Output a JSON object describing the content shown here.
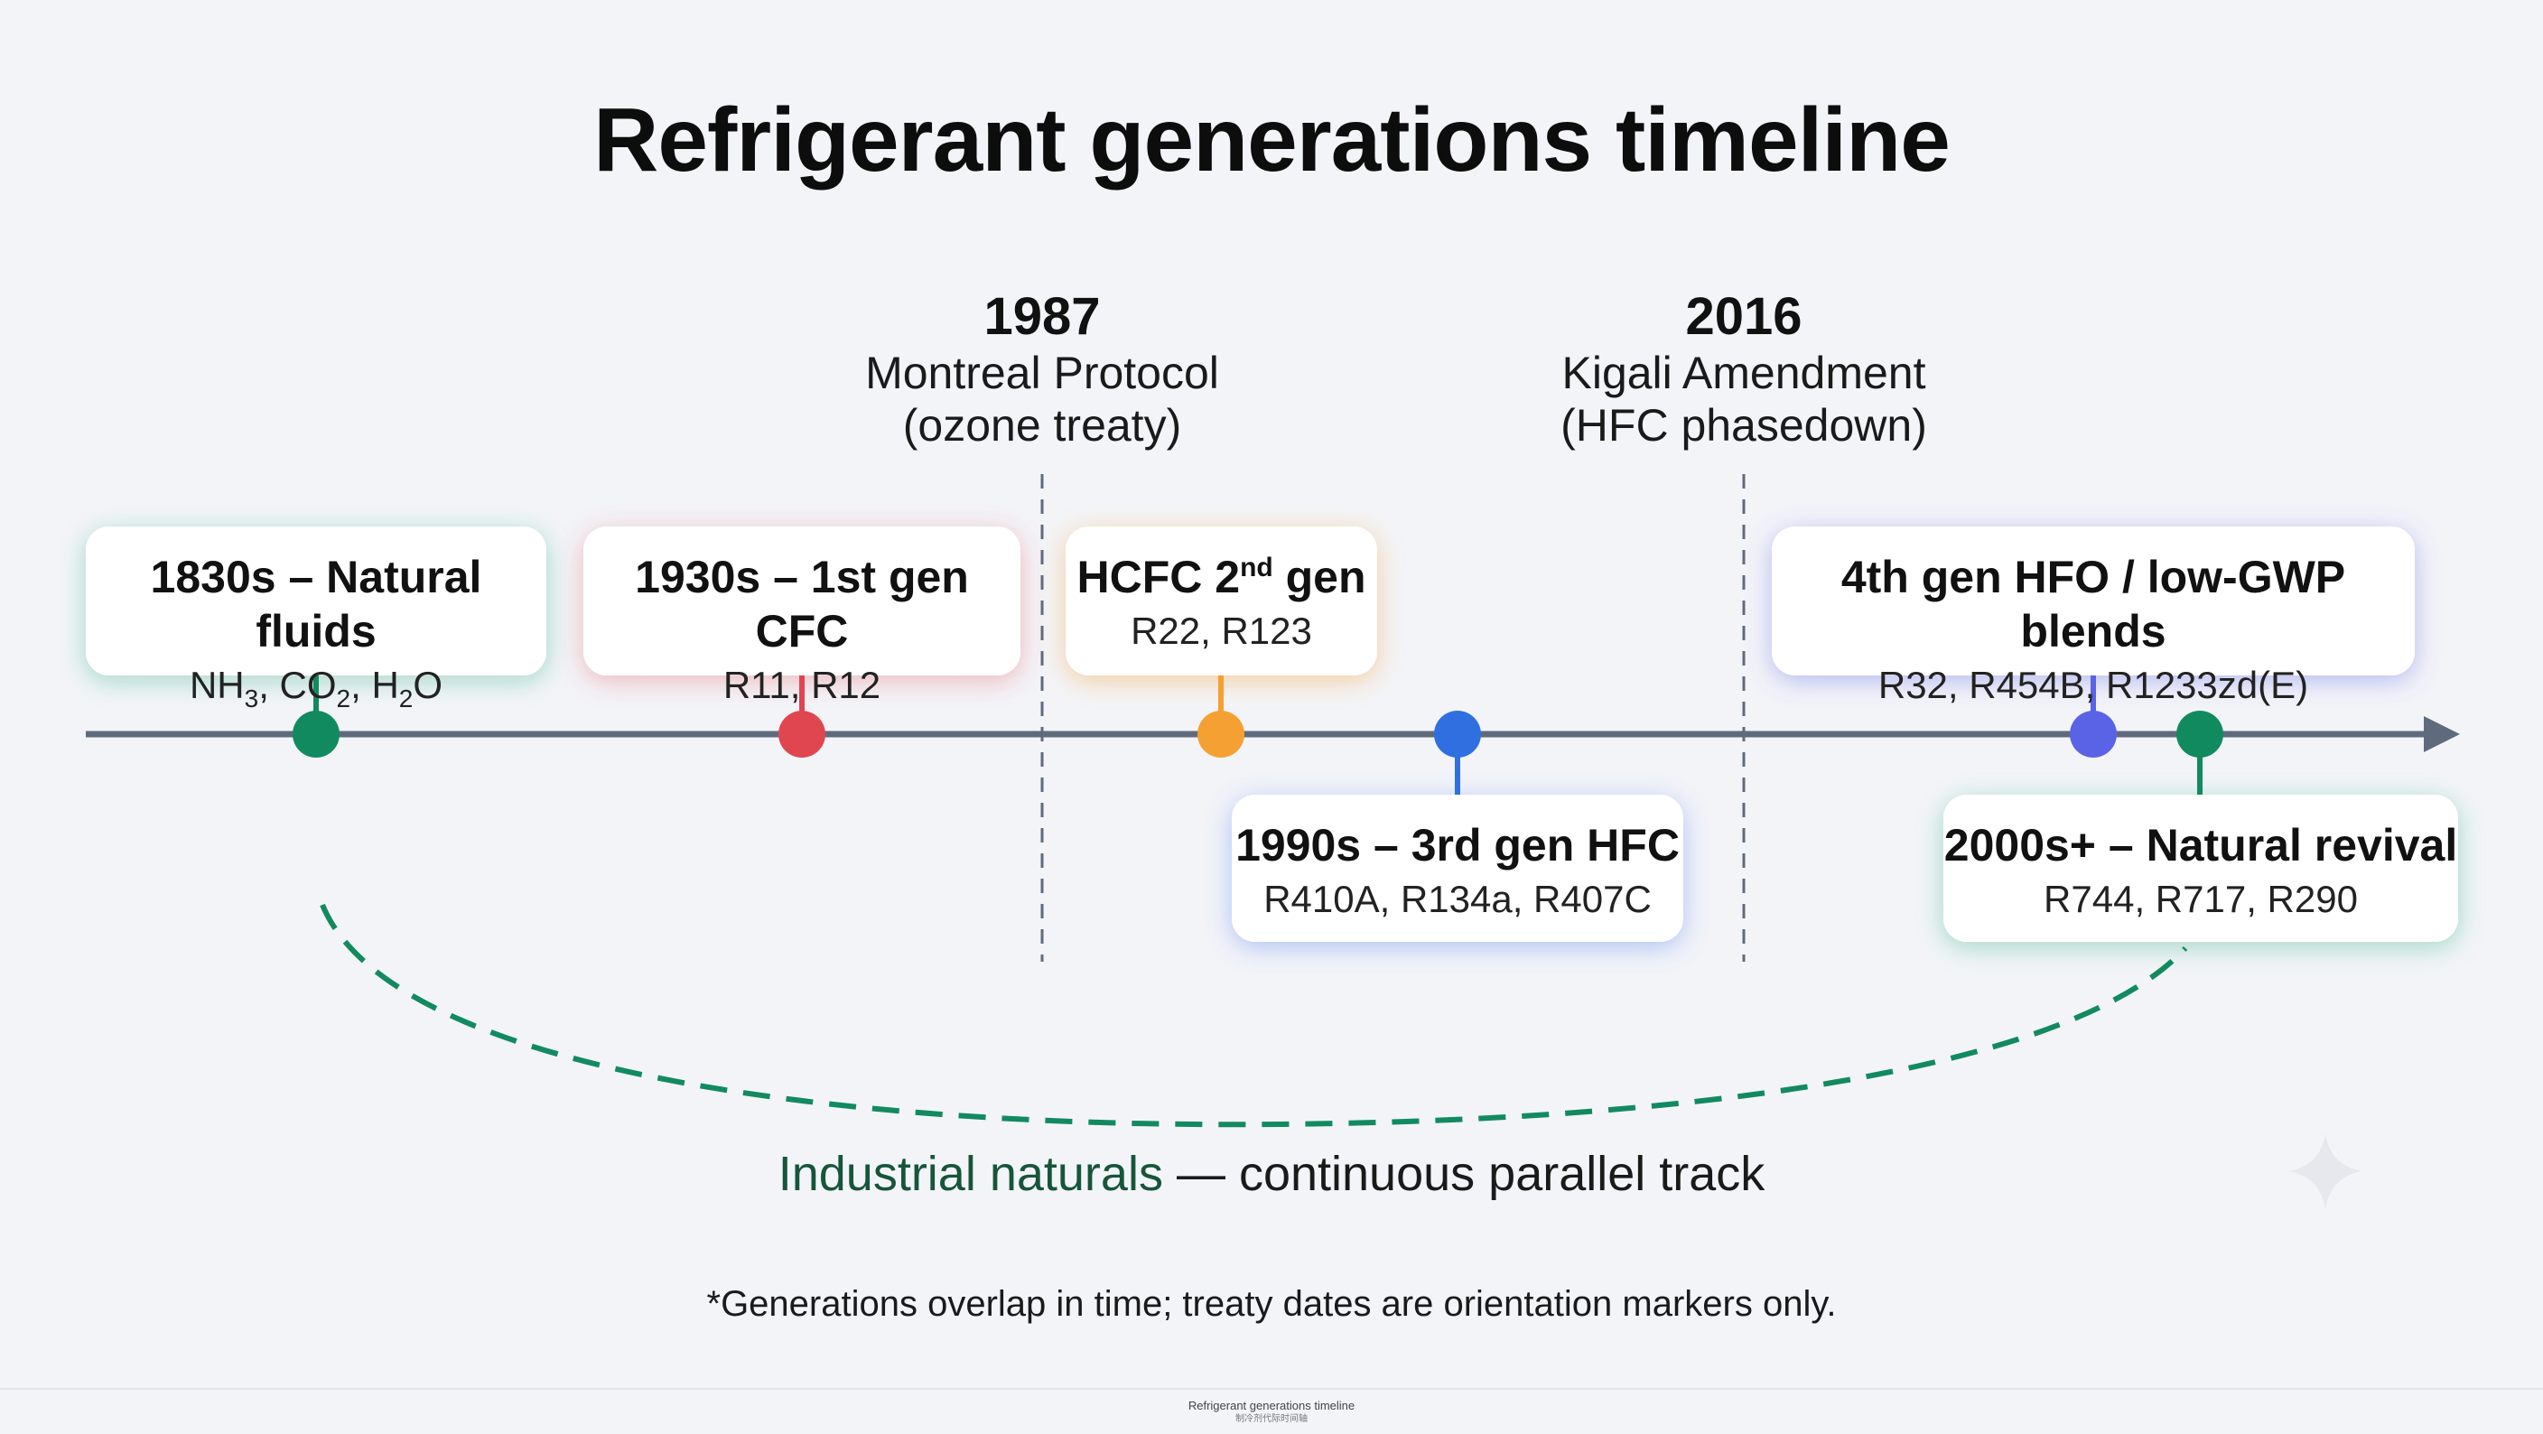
{
  "title": "Refrigerant generations timeline",
  "treaties": [
    {
      "year": "1987",
      "name": "Montreal Protocol",
      "note": "(ozone treaty)"
    },
    {
      "year": "2016",
      "name": "Kigali Amendment",
      "note": "(HFC phasedown)"
    }
  ],
  "generations": [
    {
      "heading": "1830s – Natural fluids",
      "examples": [
        "NH",
        "3",
        ", CO",
        "2",
        ", H",
        "2",
        "O"
      ],
      "color": "#128a5f"
    },
    {
      "heading": "1930s – 1st gen CFC",
      "examples": "R11, R12",
      "color": "#e04650"
    },
    {
      "heading": "HCFC 2",
      "heading_sup": "nd",
      "heading_tail": " gen",
      "examples": "R22, R123",
      "color": "#f5a033"
    },
    {
      "heading": "1990s – 3rd gen HFC",
      "examples": "R410A, R134a, R407C",
      "color": "#2f6fe0"
    },
    {
      "heading": "4th gen HFO / low-GWP blends",
      "examples": "R32, R454B, R1233zd(E)",
      "color": "#5a63e6"
    },
    {
      "heading": "2000s+ – Natural revival",
      "examples": "R744, R717, R290",
      "color": "#128a5f"
    }
  ],
  "parallel_track": {
    "highlight": "Industrial naturals",
    "rest": " — continuous parallel track",
    "color": "#17553a"
  },
  "footnote": "*Generations overlap in time; treaty dates are orientation markers only.",
  "caption": {
    "line1": "Refrigerant generations timeline",
    "line2": "制冷剂代际时间轴"
  },
  "colors": {
    "axis": "#5f6b7d",
    "background": "#f3f4f8"
  }
}
